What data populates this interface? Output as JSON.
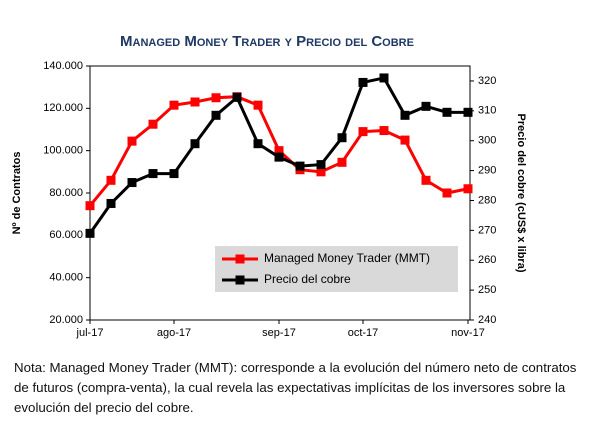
{
  "chart_data": {
    "type": "line",
    "title": "Managed Money Trader y Precio del Cobre",
    "ylabel": "Nº de Contratos",
    "y2label": "Precio del cobre (cUS$ x libra)",
    "categories": [
      "jul-17",
      null,
      null,
      null,
      "ago-17",
      null,
      null,
      null,
      null,
      "sep-17",
      null,
      null,
      null,
      "oct-17",
      null,
      null,
      null,
      null,
      "nov-17"
    ],
    "series": [
      {
        "name": "Managed Money Trader (MMT)",
        "color": "#ff0000",
        "axis": "y",
        "values": [
          74000,
          86000,
          104500,
          112500,
          121500,
          123000,
          125000,
          125500,
          121500,
          100000,
          91000,
          90000,
          94500,
          109000,
          109500,
          105000,
          86000,
          80000,
          82000
        ]
      },
      {
        "name": "Precio del cobre",
        "color": "#000000",
        "axis": "y2",
        "values": [
          269,
          279,
          286,
          289,
          289,
          299,
          308.5,
          314.5,
          299,
          294.5,
          291.5,
          292,
          301,
          319.5,
          321,
          308.5,
          311.5,
          309.5,
          309.5
        ]
      }
    ],
    "ylim": [
      20000,
      140000
    ],
    "yticks": [
      {
        "value": 20000,
        "label": "20.000"
      },
      {
        "value": 40000,
        "label": "40.000"
      },
      {
        "value": 60000,
        "label": "60.000"
      },
      {
        "value": 80000,
        "label": "80.000"
      },
      {
        "value": 100000,
        "label": "100.000"
      },
      {
        "value": 120000,
        "label": "120.000"
      },
      {
        "value": 140000,
        "label": "140.000"
      }
    ],
    "y2lim": [
      240,
      325
    ],
    "y2ticks": [
      240,
      250,
      260,
      270,
      280,
      290,
      300,
      310,
      320
    ],
    "grid": false,
    "legend": "lower right"
  },
  "note": "Nota: Managed Money Trader (MMT): corresponde a la evolución del número neto de contratos de futuros (compra-venta), la cual revela las expectativas implícitas de los inversores sobre la evolución del precio del cobre."
}
